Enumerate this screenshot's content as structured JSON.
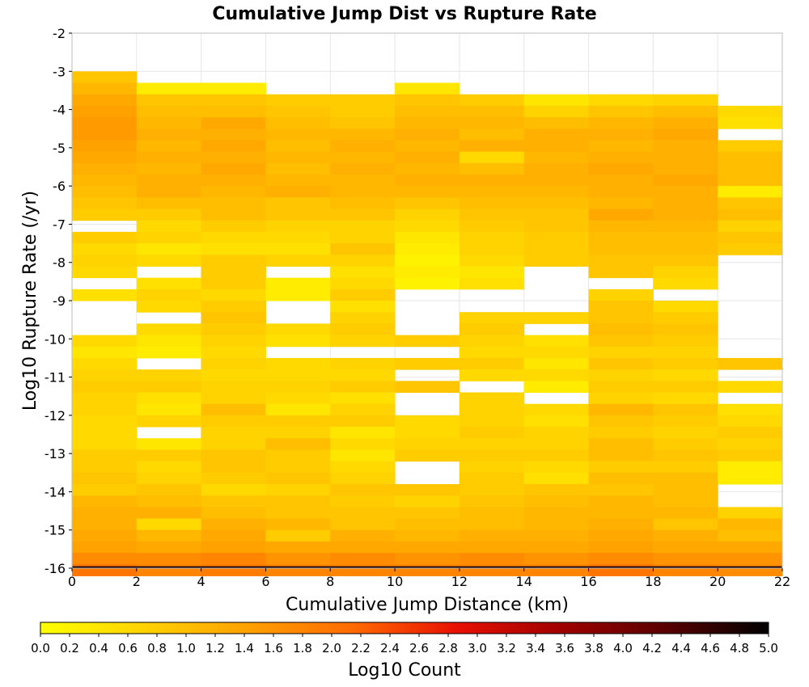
{
  "chart_data": {
    "type": "heatmap",
    "title": "Cumulative Jump Dist vs Rupture Rate",
    "xlabel": "Cumulative Jump Distance (km)",
    "ylabel": "Log10 Rupture Rate (/yr)",
    "colorbar_label": "Log10 Count",
    "xlim": [
      0,
      22
    ],
    "ylim": [
      -16,
      -2
    ],
    "x_ticks": [
      0,
      2,
      4,
      6,
      8,
      10,
      12,
      14,
      16,
      18,
      20,
      22
    ],
    "y_ticks": [
      -2,
      -3,
      -4,
      -5,
      -6,
      -7,
      -8,
      -9,
      -10,
      -11,
      -12,
      -13,
      -14,
      -15,
      -16
    ],
    "colorbar_range": [
      0,
      5
    ],
    "colorbar_ticks": [
      "0.0",
      "0.2",
      "0.4",
      "0.6",
      "0.8",
      "1.0",
      "1.2",
      "1.4",
      "1.6",
      "1.8",
      "2.0",
      "2.2",
      "2.4",
      "2.6",
      "2.8",
      "3.0",
      "3.2",
      "3.4",
      "3.6",
      "3.8",
      "4.0",
      "4.2",
      "4.4",
      "4.6",
      "4.8",
      "5.0"
    ],
    "colorscale": [
      "#ffff00",
      "#ffd200",
      "#ffa000",
      "#ff6a00",
      "#e81000",
      "#a00000",
      "#5a0000",
      "#000000"
    ],
    "x_bins": [
      0,
      2,
      4,
      6,
      8,
      10,
      12,
      14,
      16,
      18,
      20
    ],
    "y_bin_width": 0.3,
    "y_bins": [
      -3.0,
      -3.3,
      -3.6,
      -3.9,
      -4.2,
      -4.5,
      -4.8,
      -5.1,
      -5.4,
      -5.7,
      -6.0,
      -6.3,
      -6.6,
      -6.9,
      -7.2,
      -7.5,
      -7.8,
      -8.1,
      -8.4,
      -8.7,
      -9.0,
      -9.3,
      -9.6,
      -9.9,
      -10.2,
      -10.5,
      -10.8,
      -11.1,
      -11.4,
      -11.7,
      -12.0,
      -12.3,
      -12.6,
      -12.9,
      -13.2,
      -13.5,
      -13.8,
      -14.1,
      -14.4,
      -14.7,
      -15.0,
      -15.3,
      -15.6,
      -15.9
    ],
    "values": [
      [
        0.9,
        null,
        null,
        null,
        null,
        null,
        null,
        null,
        null,
        null,
        null
      ],
      [
        1.1,
        0.3,
        0.3,
        null,
        null,
        0.4,
        null,
        null,
        null,
        null,
        null
      ],
      [
        1.3,
        0.9,
        0.9,
        0.8,
        0.8,
        0.9,
        0.8,
        0.4,
        0.6,
        0.7,
        null
      ],
      [
        1.4,
        1.0,
        1.0,
        0.9,
        0.8,
        1.0,
        1.0,
        0.7,
        0.9,
        1.0,
        0.6
      ],
      [
        1.5,
        1.1,
        1.3,
        1.0,
        0.9,
        1.1,
        1.1,
        1.0,
        1.1,
        1.2,
        0.5
      ],
      [
        1.5,
        1.2,
        1.2,
        1.1,
        1.1,
        1.2,
        1.0,
        1.2,
        1.2,
        1.3,
        null
      ],
      [
        1.4,
        1.1,
        1.3,
        1.0,
        1.2,
        1.1,
        1.2,
        1.2,
        1.1,
        1.2,
        0.8
      ],
      [
        1.3,
        1.2,
        1.2,
        1.1,
        1.1,
        1.2,
        0.6,
        1.1,
        1.2,
        1.2,
        1.0
      ],
      [
        1.2,
        1.1,
        1.3,
        1.0,
        1.2,
        1.1,
        1.0,
        1.2,
        1.3,
        1.2,
        1.0
      ],
      [
        1.1,
        1.2,
        1.2,
        1.1,
        1.1,
        1.2,
        1.2,
        1.2,
        1.2,
        1.3,
        1.0
      ],
      [
        1.0,
        1.2,
        1.1,
        1.2,
        1.1,
        1.1,
        1.1,
        1.1,
        1.2,
        1.2,
        0.3
      ],
      [
        0.9,
        1.0,
        1.0,
        0.9,
        1.0,
        0.9,
        1.0,
        1.0,
        1.1,
        1.2,
        0.9
      ],
      [
        0.8,
        0.8,
        1.0,
        0.9,
        0.9,
        0.7,
        0.9,
        0.9,
        1.3,
        1.2,
        1.0
      ],
      [
        null,
        0.6,
        0.8,
        0.7,
        0.7,
        0.6,
        0.8,
        0.9,
        1.1,
        1.1,
        0.7
      ],
      [
        0.8,
        0.7,
        0.6,
        0.6,
        0.7,
        0.4,
        0.7,
        0.8,
        1.0,
        1.0,
        0.9
      ],
      [
        0.6,
        0.4,
        0.5,
        0.5,
        0.9,
        0.3,
        0.7,
        0.8,
        1.0,
        1.0,
        0.8
      ],
      [
        0.7,
        0.6,
        0.8,
        0.7,
        0.7,
        0.2,
        0.6,
        0.8,
        0.9,
        0.9,
        null
      ],
      [
        0.6,
        null,
        0.8,
        null,
        0.5,
        0.3,
        0.4,
        null,
        0.9,
        0.7,
        null
      ],
      [
        null,
        0.5,
        0.8,
        0.3,
        0.6,
        0.2,
        0.5,
        null,
        null,
        0.6,
        null
      ],
      [
        0.5,
        0.7,
        0.6,
        0.3,
        0.8,
        null,
        null,
        null,
        0.7,
        null,
        null
      ],
      [
        null,
        0.6,
        0.8,
        null,
        0.5,
        null,
        null,
        null,
        0.9,
        0.6,
        null
      ],
      [
        null,
        null,
        0.9,
        null,
        0.7,
        null,
        0.7,
        0.7,
        0.9,
        0.8,
        null
      ],
      [
        null,
        0.6,
        0.8,
        0.6,
        0.8,
        null,
        0.8,
        null,
        1.0,
        0.9,
        null
      ],
      [
        0.6,
        0.4,
        0.7,
        0.5,
        0.7,
        0.8,
        0.7,
        0.5,
        0.9,
        0.8,
        null
      ],
      [
        0.4,
        0.3,
        0.6,
        null,
        null,
        null,
        0.6,
        0.6,
        0.7,
        0.7,
        null
      ],
      [
        0.6,
        null,
        0.7,
        0.6,
        0.7,
        0.8,
        0.8,
        0.4,
        0.9,
        0.8,
        0.9
      ],
      [
        0.7,
        0.7,
        0.6,
        0.6,
        0.6,
        null,
        0.6,
        0.6,
        0.7,
        0.6,
        null
      ],
      [
        0.8,
        0.8,
        0.7,
        0.7,
        0.8,
        0.9,
        null,
        0.3,
        0.8,
        0.8,
        0.6
      ],
      [
        0.7,
        0.5,
        0.7,
        0.6,
        0.5,
        null,
        0.7,
        null,
        0.7,
        0.6,
        null
      ],
      [
        0.7,
        0.4,
        1.0,
        0.4,
        0.7,
        null,
        0.7,
        0.6,
        1.1,
        0.9,
        0.5
      ],
      [
        0.6,
        0.7,
        0.8,
        0.8,
        0.8,
        0.6,
        0.7,
        0.5,
        0.9,
        0.8,
        0.6
      ],
      [
        0.6,
        null,
        0.7,
        0.7,
        0.4,
        0.6,
        0.8,
        0.7,
        0.8,
        0.7,
        0.8
      ],
      [
        0.6,
        0.4,
        0.7,
        1.0,
        0.6,
        0.7,
        0.7,
        0.7,
        1.0,
        0.8,
        0.7
      ],
      [
        0.8,
        0.8,
        0.9,
        0.8,
        0.4,
        0.8,
        0.8,
        0.8,
        1.0,
        0.9,
        0.8
      ],
      [
        0.8,
        0.6,
        0.9,
        0.8,
        0.6,
        null,
        0.7,
        0.6,
        0.8,
        0.8,
        0.3
      ],
      [
        0.9,
        0.7,
        0.8,
        0.9,
        0.7,
        null,
        0.8,
        0.5,
        1.0,
        1.0,
        0.3
      ],
      [
        0.8,
        0.9,
        0.6,
        0.7,
        0.9,
        0.9,
        0.8,
        0.9,
        0.9,
        1.0,
        null
      ],
      [
        1.1,
        1.0,
        0.9,
        0.9,
        0.8,
        0.7,
        0.9,
        1.0,
        1.1,
        1.0,
        null
      ],
      [
        1.2,
        1.2,
        1.0,
        0.9,
        0.9,
        0.9,
        1.0,
        1.1,
        1.1,
        1.1,
        0.7
      ],
      [
        1.2,
        0.6,
        1.2,
        1.1,
        0.9,
        1.0,
        1.0,
        1.1,
        1.2,
        0.9,
        1.1
      ],
      [
        1.3,
        1.1,
        1.3,
        0.8,
        1.2,
        1.1,
        1.2,
        1.2,
        1.3,
        1.2,
        1.0
      ],
      [
        1.4,
        1.3,
        1.4,
        1.3,
        1.3,
        1.3,
        1.3,
        1.3,
        1.4,
        1.3,
        1.3
      ],
      [
        1.7,
        1.7,
        1.8,
        1.6,
        1.7,
        1.6,
        1.7,
        1.6,
        1.7,
        1.6,
        1.6
      ],
      [
        2.0,
        1.8,
        1.9,
        1.8,
        1.8,
        1.8,
        1.8,
        1.8,
        2.0,
        1.8,
        1.7
      ]
    ],
    "bottom_row": {
      "y": -15.95,
      "value": 4.8
    }
  }
}
